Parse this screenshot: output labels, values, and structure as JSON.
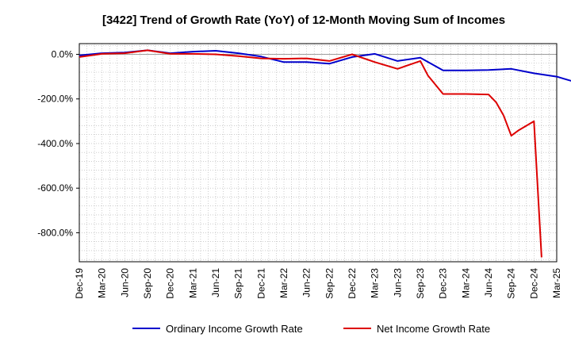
{
  "chart_data": {
    "type": "line",
    "title": "[3422]  Trend of Growth Rate (YoY) of 12-Month Moving Sum of Incomes",
    "xlabel": "",
    "ylabel": "",
    "x_tick_labels": [
      "Dec-19",
      "Mar-20",
      "Jun-20",
      "Sep-20",
      "Dec-20",
      "Mar-21",
      "Jun-21",
      "Sep-21",
      "Dec-21",
      "Mar-22",
      "Jun-22",
      "Sep-22",
      "Dec-22",
      "Mar-23",
      "Jun-23",
      "Sep-23",
      "Dec-23",
      "Mar-24",
      "Jun-24",
      "Sep-24",
      "Dec-24",
      "Mar-25"
    ],
    "y_ticks": [
      0,
      -200,
      -400,
      -600,
      -800
    ],
    "y_tick_labels": [
      "0.0%",
      "-200.0%",
      "-400.0%",
      "-600.0%",
      "-800.0%"
    ],
    "ylim": [
      -930,
      48
    ],
    "grid": true,
    "legend_position": "bottom",
    "series": [
      {
        "name": "Ordinary Income Growth Rate",
        "color": "#0000cc",
        "x": [
          0,
          3,
          6,
          9,
          12,
          15,
          18,
          21,
          24,
          27,
          30,
          33,
          36,
          39,
          42,
          45,
          48,
          51,
          54,
          57,
          60,
          63,
          64,
          65,
          66
        ],
        "values": [
          -5,
          5,
          8,
          18,
          5,
          12,
          16,
          5,
          -10,
          -35,
          -35,
          -42,
          -12,
          2,
          -30,
          -15,
          -72,
          -72,
          -70,
          -65,
          -85,
          -100,
          -110,
          -120,
          -138
        ]
      },
      {
        "name": "Net Income Growth Rate",
        "color": "#dd0000",
        "x": [
          0,
          3,
          6,
          9,
          12,
          15,
          18,
          21,
          24,
          27,
          30,
          33,
          36,
          39,
          42,
          45,
          46,
          48,
          51,
          54,
          55,
          56,
          57,
          58,
          60,
          61
        ],
        "values": [
          -12,
          2,
          5,
          18,
          2,
          2,
          0,
          -8,
          -18,
          -20,
          -18,
          -30,
          0,
          -35,
          -65,
          -30,
          -95,
          -178,
          -178,
          -180,
          -215,
          -275,
          -365,
          -340,
          -300,
          -910
        ]
      }
    ]
  }
}
